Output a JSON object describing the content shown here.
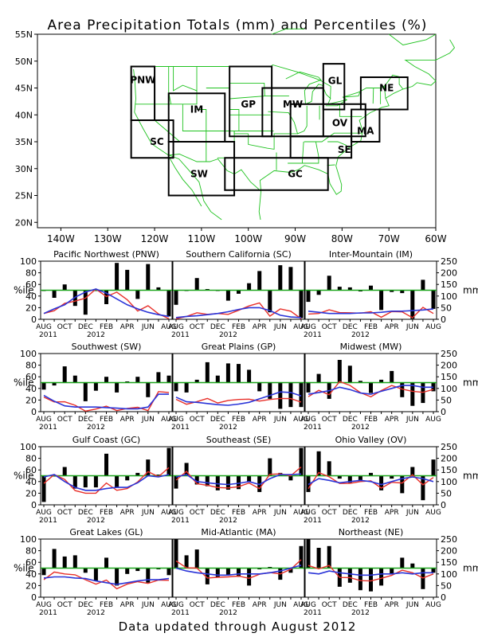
{
  "title": "Area Precipitation Totals (mm) and Percentiles (%)",
  "footer": "Data updated through August 2012",
  "colors": {
    "bar": "#000000",
    "pctl_line": "#e8302a",
    "mm_line": "#2b35d8",
    "ref_line": "#1aa41a",
    "map_lines": "#1ec21e",
    "region_labels": "#2a55e0"
  },
  "map": {
    "lat_ticks": [
      "55N",
      "50N",
      "45N",
      "40N",
      "35N",
      "30N",
      "25N",
      "20N"
    ],
    "lon_ticks": [
      "140W",
      "130W",
      "120W",
      "110W",
      "100W",
      "90W",
      "80W",
      "70W",
      "60W"
    ],
    "regions": [
      {
        "code": "PNW",
        "label": "PNW"
      },
      {
        "code": "SC",
        "label": "SC"
      },
      {
        "code": "IM",
        "label": "IM"
      },
      {
        "code": "SW",
        "label": "SW"
      },
      {
        "code": "GP",
        "label": "GP"
      },
      {
        "code": "MW",
        "label": "MW"
      },
      {
        "code": "GL",
        "label": "GL"
      },
      {
        "code": "OV",
        "label": "OV"
      },
      {
        "code": "NE",
        "label": "NE"
      },
      {
        "code": "MA",
        "label": "MA"
      },
      {
        "code": "SE",
        "label": "SE"
      },
      {
        "code": "GC",
        "label": "GC"
      }
    ]
  },
  "axis_labels": {
    "left": "%ile",
    "right": "mm"
  },
  "x_ticks": [
    "AUG",
    "OCT",
    "DEC",
    "FEB",
    "APR",
    "JUN",
    "AUG"
  ],
  "x_years": [
    "2011",
    "2012"
  ],
  "left_ticks": [
    "0",
    "20",
    "40",
    "60",
    "80",
    "100"
  ],
  "right_ticks": [
    "0",
    "50",
    "100",
    "150",
    "200",
    "250"
  ],
  "chart_data": [
    {
      "type": "bar",
      "title": "Pacific Northwest (PNW)",
      "months": [
        "AUG 2011",
        "SEP",
        "OCT",
        "NOV",
        "DEC",
        "JAN 2012",
        "FEB",
        "MAR",
        "APR",
        "MAY",
        "JUN",
        "JUL",
        "AUG"
      ],
      "pctl": [
        50,
        37,
        60,
        23,
        8,
        50,
        26,
        97,
        85,
        35,
        95,
        55,
        5
      ],
      "mm_pctl_scale": [
        10,
        18,
        25,
        38,
        47,
        52,
        45,
        35,
        25,
        18,
        12,
        8,
        5
      ],
      "mm": [
        25,
        45,
        63,
        95,
        118,
        130,
        113,
        88,
        63,
        45,
        30,
        20,
        13
      ],
      "ylim": [
        0,
        100
      ],
      "ylim_right": [
        0,
        250
      ]
    },
    {
      "type": "bar",
      "title": "Southern California (SC)",
      "months": [
        "AUG 2011",
        "SEP",
        "OCT",
        "NOV",
        "DEC",
        "JAN 2012",
        "FEB",
        "MAR",
        "APR",
        "MAY",
        "JUN",
        "JUL",
        "AUG"
      ],
      "pctl": [
        25,
        50,
        71,
        52,
        50,
        32,
        44,
        62,
        83,
        12,
        93,
        90,
        2
      ],
      "mm_pctl_scale": [
        3,
        5,
        6,
        8,
        10,
        13,
        17,
        20,
        20,
        15,
        7,
        4,
        3
      ],
      "mm": [
        8,
        13,
        15,
        20,
        25,
        33,
        43,
        50,
        50,
        38,
        18,
        10,
        8
      ],
      "ylim": [
        0,
        100
      ],
      "ylim_right": [
        0,
        250
      ]
    },
    {
      "type": "bar",
      "title": "Inter-Mountain (IM)",
      "months": [
        "AUG 2011",
        "SEP",
        "OCT",
        "NOV",
        "DEC",
        "JAN 2012",
        "FEB",
        "MAR",
        "APR",
        "MAY",
        "JUN",
        "JUL",
        "AUG"
      ],
      "pctl": [
        30,
        42,
        75,
        56,
        55,
        48,
        58,
        16,
        47,
        45,
        1,
        68,
        18
      ],
      "mm_pctl_scale": [
        14,
        12,
        10,
        10,
        10,
        11,
        11,
        12,
        14,
        14,
        15,
        16,
        18
      ],
      "mm": [
        35,
        30,
        25,
        25,
        25,
        28,
        28,
        30,
        35,
        35,
        38,
        40,
        45
      ],
      "ylim": [
        0,
        100
      ],
      "ylim_right": [
        0,
        250
      ]
    },
    {
      "type": "bar",
      "title": "Southwest (SW)",
      "months": [
        "AUG 2011",
        "SEP",
        "OCT",
        "NOV",
        "DEC",
        "JAN 2012",
        "FEB",
        "MAR",
        "APR",
        "MAY",
        "JUN",
        "JUL",
        "AUG"
      ],
      "pctl": [
        38,
        45,
        78,
        62,
        18,
        36,
        60,
        33,
        52,
        60,
        25,
        68,
        62
      ],
      "mm_pctl_scale": [
        28,
        18,
        10,
        8,
        8,
        8,
        7,
        6,
        5,
        5,
        8,
        30,
        30
      ],
      "mm": [
        70,
        45,
        25,
        20,
        20,
        20,
        18,
        15,
        13,
        13,
        20,
        75,
        75
      ],
      "ylim": [
        0,
        100
      ],
      "ylim_right": [
        0,
        250
      ]
    },
    {
      "type": "bar",
      "title": "Great Plains (GP)",
      "months": [
        "AUG 2011",
        "SEP",
        "OCT",
        "NOV",
        "DEC",
        "JAN 2012",
        "FEB",
        "MAR",
        "APR",
        "MAY",
        "JUN",
        "JUL",
        "AUG"
      ],
      "pctl": [
        35,
        33,
        55,
        85,
        62,
        83,
        82,
        72,
        35,
        22,
        5,
        8,
        8
      ],
      "mm_pctl_scale": [
        25,
        17,
        16,
        14,
        12,
        11,
        13,
        16,
        22,
        28,
        34,
        33,
        27
      ],
      "mm": [
        63,
        43,
        40,
        35,
        30,
        28,
        33,
        40,
        55,
        70,
        85,
        83,
        68
      ],
      "ylim": [
        0,
        100
      ],
      "ylim_right": [
        0,
        250
      ]
    },
    {
      "type": "bar",
      "title": "Midwest (MW)",
      "months": [
        "AUG 2011",
        "SEP",
        "OCT",
        "NOV",
        "DEC",
        "JAN 2012",
        "FEB",
        "MAR",
        "APR",
        "MAY",
        "JUN",
        "JUL",
        "AUG"
      ],
      "pctl": [
        33,
        65,
        22,
        89,
        79,
        53,
        32,
        55,
        70,
        25,
        10,
        15,
        35
      ],
      "mm_pctl_scale": [
        30,
        33,
        36,
        42,
        38,
        32,
        30,
        35,
        40,
        45,
        45,
        42,
        42
      ],
      "mm": [
        75,
        83,
        90,
        105,
        95,
        80,
        75,
        88,
        100,
        113,
        113,
        105,
        105
      ],
      "ylim": [
        0,
        100
      ],
      "ylim_right": [
        0,
        250
      ]
    },
    {
      "type": "bar",
      "title": "Gulf Coast (GC)",
      "months": [
        "AUG 2011",
        "SEP",
        "OCT",
        "NOV",
        "DEC",
        "JAN 2012",
        "FEB",
        "MAR",
        "APR",
        "MAY",
        "JUN",
        "JUL",
        "AUG"
      ],
      "pctl": [
        5,
        50,
        65,
        28,
        30,
        30,
        88,
        30,
        42,
        55,
        78,
        52,
        98
      ],
      "mm_pctl_scale": [
        48,
        52,
        40,
        30,
        25,
        25,
        28,
        30,
        30,
        38,
        50,
        48,
        52
      ],
      "mm": [
        120,
        130,
        100,
        75,
        63,
        63,
        70,
        75,
        75,
        95,
        125,
        120,
        130
      ],
      "ylim": [
        0,
        100
      ],
      "ylim_right": [
        0,
        250
      ]
    },
    {
      "type": "bar",
      "title": "Southeast (SE)",
      "months": [
        "AUG 2011",
        "SEP",
        "OCT",
        "NOV",
        "DEC",
        "JAN 2012",
        "FEB",
        "MAR",
        "APR",
        "MAY",
        "JUN",
        "JUL",
        "AUG"
      ],
      "pctl": [
        28,
        72,
        35,
        32,
        25,
        26,
        27,
        40,
        22,
        80,
        55,
        42,
        98
      ],
      "mm_pctl_scale": [
        48,
        52,
        40,
        38,
        36,
        35,
        37,
        40,
        35,
        45,
        52,
        52,
        53
      ],
      "mm": [
        120,
        130,
        100,
        95,
        90,
        88,
        93,
        100,
        88,
        113,
        130,
        130,
        133
      ],
      "ylim": [
        0,
        100
      ],
      "ylim_right": [
        0,
        250
      ]
    },
    {
      "type": "bar",
      "title": "Ohio Valley (OV)",
      "months": [
        "AUG 2011",
        "SEP",
        "OCT",
        "NOV",
        "DEC",
        "JAN 2012",
        "FEB",
        "MAR",
        "APR",
        "MAY",
        "JUN",
        "JUL",
        "AUG"
      ],
      "pctl": [
        22,
        92,
        75,
        45,
        38,
        42,
        55,
        25,
        45,
        20,
        65,
        8,
        78
      ],
      "mm_pctl_scale": [
        35,
        45,
        42,
        38,
        40,
        42,
        40,
        35,
        40,
        45,
        48,
        45,
        40
      ],
      "mm": [
        88,
        113,
        105,
        95,
        100,
        105,
        100,
        88,
        100,
        113,
        120,
        113,
        100
      ],
      "ylim": [
        0,
        100
      ],
      "ylim_right": [
        0,
        250
      ]
    },
    {
      "type": "bar",
      "title": "Great Lakes (GL)",
      "months": [
        "AUG 2011",
        "SEP",
        "OCT",
        "NOV",
        "DEC",
        "JAN 2012",
        "FEB",
        "MAR",
        "APR",
        "MAY",
        "JUN",
        "JUL",
        "AUG"
      ],
      "pctl": [
        38,
        83,
        70,
        72,
        42,
        28,
        68,
        20,
        40,
        45,
        25,
        48,
        38
      ],
      "mm_pctl_scale": [
        33,
        35,
        35,
        33,
        32,
        28,
        25,
        22,
        25,
        28,
        30,
        30,
        32
      ],
      "mm": [
        83,
        88,
        88,
        83,
        80,
        70,
        63,
        55,
        63,
        70,
        75,
        75,
        80
      ],
      "ylim": [
        0,
        100
      ],
      "ylim_right": [
        0,
        250
      ]
    },
    {
      "type": "bar",
      "title": "Mid-Atlantic (MA)",
      "months": [
        "AUG 2011",
        "SEP",
        "OCT",
        "NOV",
        "DEC",
        "JAN 2012",
        "FEB",
        "MAR",
        "APR",
        "MAY",
        "JUN",
        "JUL",
        "AUG"
      ],
      "pctl": [
        100,
        72,
        82,
        22,
        35,
        38,
        35,
        20,
        48,
        52,
        30,
        42,
        88
      ],
      "mm_pctl_scale": [
        50,
        45,
        42,
        40,
        38,
        38,
        40,
        40,
        40,
        42,
        45,
        50,
        55
      ],
      "mm": [
        125,
        113,
        105,
        100,
        95,
        95,
        100,
        100,
        100,
        105,
        113,
        125,
        138
      ],
      "ylim": [
        0,
        100
      ],
      "ylim_right": [
        0,
        250
      ]
    },
    {
      "type": "bar",
      "title": "Northeast (NE)",
      "months": [
        "AUG 2011",
        "SEP",
        "OCT",
        "NOV",
        "DEC",
        "JAN 2012",
        "FEB",
        "MAR",
        "APR",
        "MAY",
        "JUN",
        "JUL",
        "AUG"
      ],
      "pctl": [
        100,
        85,
        88,
        18,
        25,
        12,
        10,
        20,
        40,
        68,
        58,
        14,
        42
      ],
      "mm_pctl_scale": [
        42,
        40,
        45,
        42,
        40,
        38,
        38,
        40,
        40,
        42,
        40,
        42,
        42
      ],
      "mm": [
        105,
        100,
        113,
        105,
        100,
        95,
        95,
        100,
        100,
        105,
        100,
        105,
        105
      ],
      "ylim": [
        0,
        100
      ],
      "ylim_right": [
        0,
        250
      ]
    }
  ]
}
